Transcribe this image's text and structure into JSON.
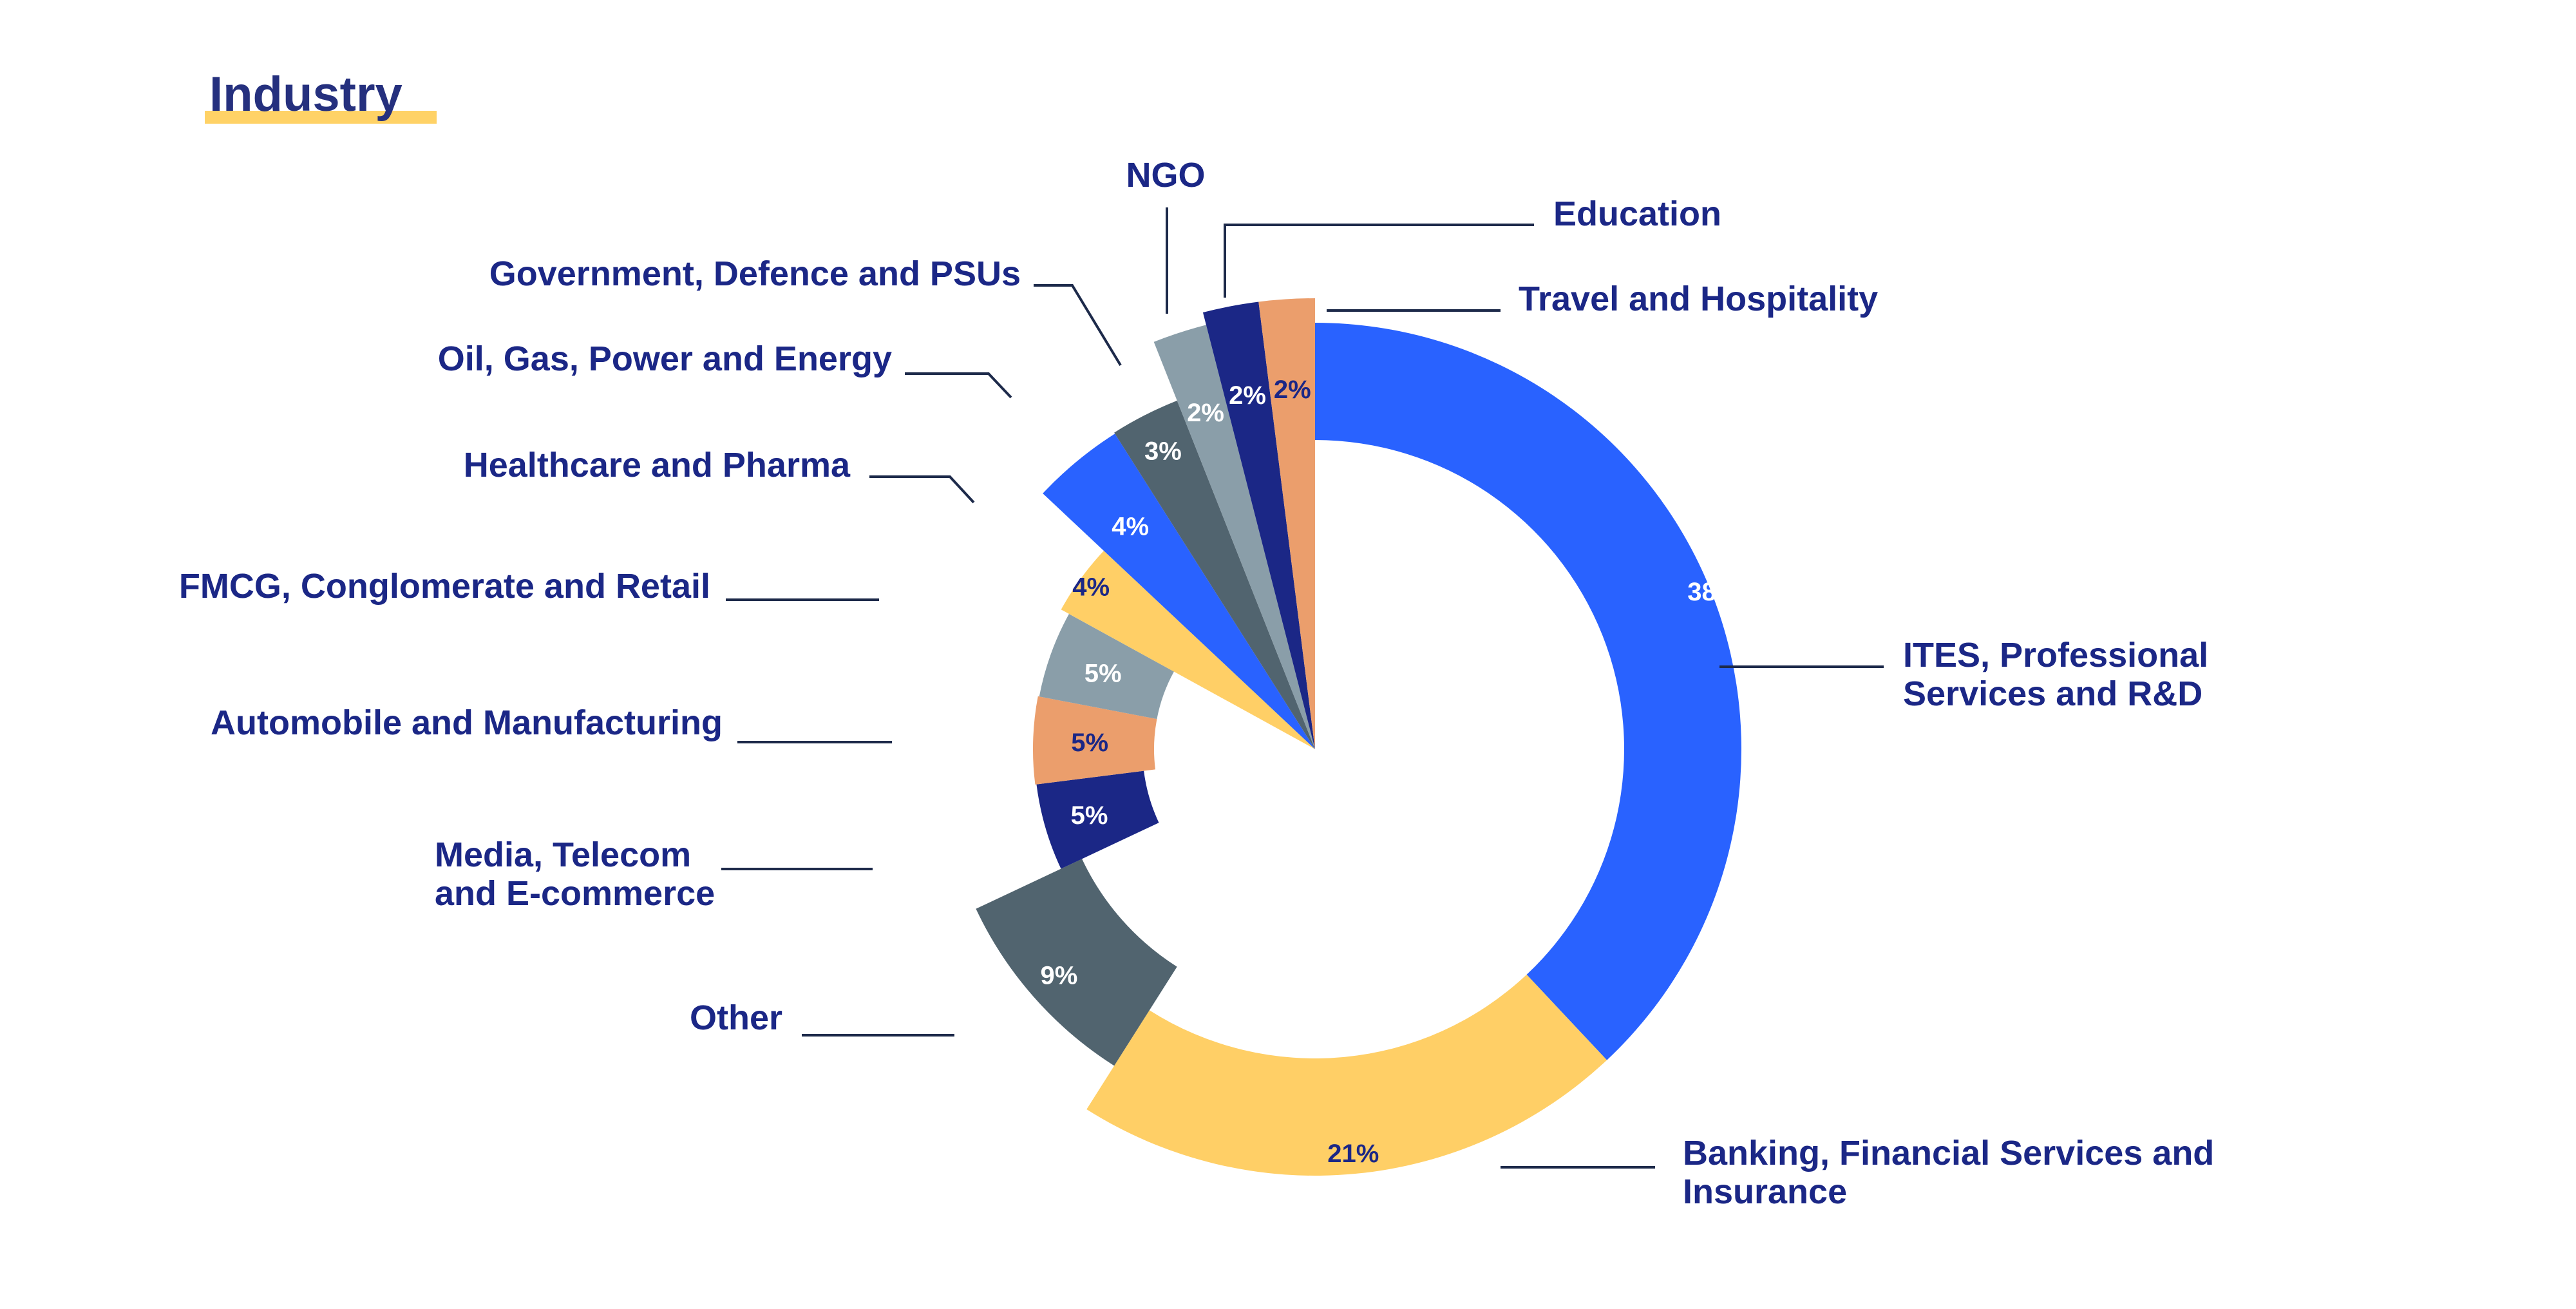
{
  "chart_data": {
    "type": "pie",
    "title": "Industry",
    "slices": [
      {
        "label": "ITES, Professional Services and R&D",
        "value": 38,
        "value_label": "38%",
        "color": "#2962ff",
        "text_color": "#ffffff"
      },
      {
        "label": "Banking, Financial Services and Insurance",
        "value": 21,
        "value_label": "21%",
        "color": "#ffcf66",
        "text_color": "#1b2786"
      },
      {
        "label": "Other",
        "value": 9,
        "value_label": "9%",
        "color": "#51646f",
        "text_color": "#ffffff"
      },
      {
        "label": "Media, Telecom and E-commerce",
        "value": 5,
        "value_label": "5%",
        "color": "#1b2786",
        "text_color": "#ffffff"
      },
      {
        "label": "Automobile and Manufacturing",
        "value": 5,
        "value_label": "5%",
        "color": "#eb9e6c",
        "text_color": "#1b2786"
      },
      {
        "label": "FMCG, Conglomerate and Retail",
        "value": 5,
        "value_label": "5%",
        "color": "#8a9ea9",
        "text_color": "#ffffff"
      },
      {
        "label": "Healthcare and Pharma",
        "value": 4,
        "value_label": "4%",
        "color": "#ffcf66",
        "text_color": "#1b2786"
      },
      {
        "label": "Oil, Gas, Power and Energy",
        "value": 4,
        "value_label": "4%",
        "color": "#2962ff",
        "text_color": "#ffffff"
      },
      {
        "label": "Government, Defence and PSUs",
        "value": 3,
        "value_label": "3%",
        "color": "#51646f",
        "text_color": "#ffffff"
      },
      {
        "label": "NGO",
        "value": 2,
        "value_label": "2%",
        "color": "#8a9ea9",
        "text_color": "#ffffff"
      },
      {
        "label": "Education",
        "value": 2,
        "value_label": "2%",
        "color": "#1b2786",
        "text_color": "#ffffff"
      },
      {
        "label": "Travel and Hospitality",
        "value": 2,
        "value_label": "2%",
        "color": "#eb9e6c",
        "text_color": "#1b2786"
      }
    ],
    "legend": "none",
    "accent_color": "#ffd266",
    "label_color": "#1b2786"
  }
}
